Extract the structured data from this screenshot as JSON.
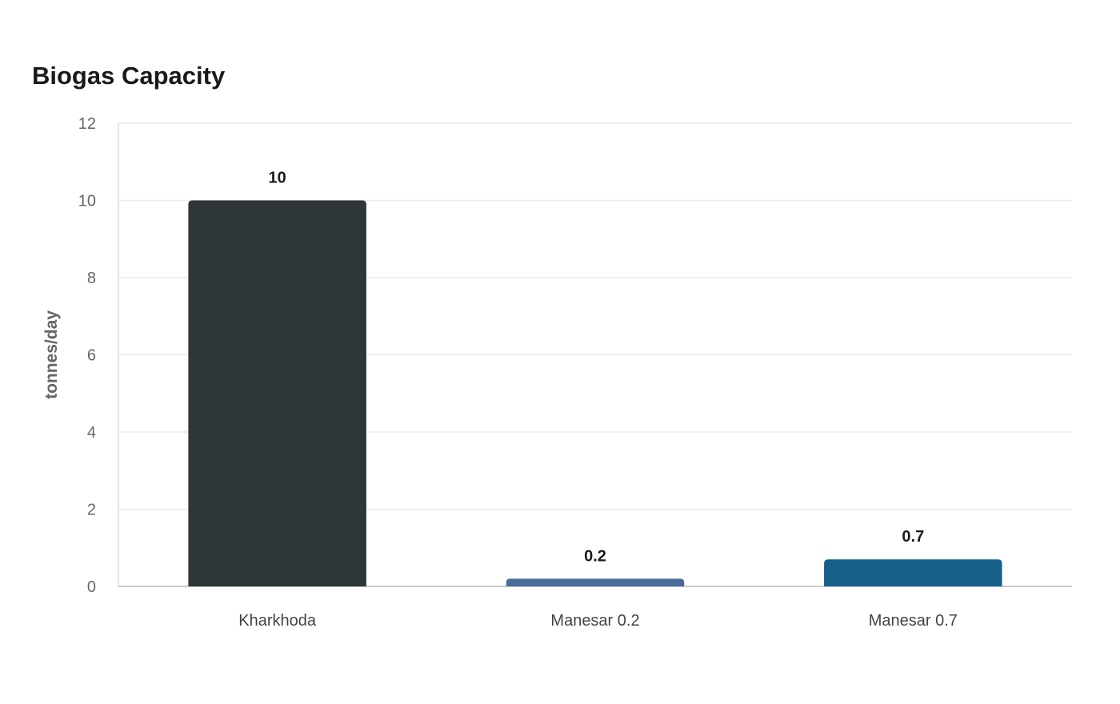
{
  "chart_data": {
    "type": "bar",
    "title": "Biogas Capacity",
    "xlabel": "",
    "ylabel": "tonnes/day",
    "categories": [
      "Kharkhoda",
      "Manesar 0.2",
      "Manesar 0.7"
    ],
    "values": [
      10,
      0.2,
      0.7
    ],
    "value_labels": [
      "10",
      "0.2",
      "0.7"
    ],
    "colors": [
      "#2e3638",
      "#4a6b9a",
      "#17608a"
    ],
    "ylim": [
      0,
      12
    ],
    "yticks": [
      0,
      2,
      4,
      6,
      8,
      10,
      12
    ],
    "grid": true,
    "legend": "none"
  }
}
